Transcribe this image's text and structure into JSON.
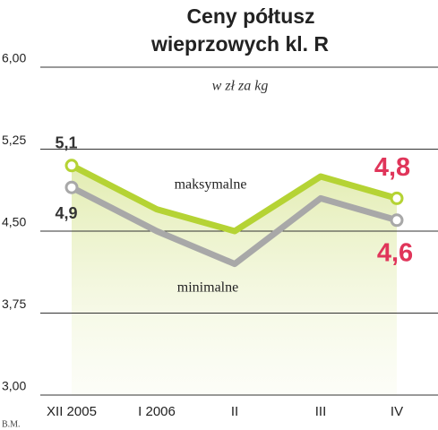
{
  "chart_data": {
    "type": "line",
    "title": "Ceny półtusz",
    "title_line2": "wieprzowych kl. R",
    "subtitle": "w zł za kg",
    "credit": "B.M.",
    "categories": [
      "XII 2005",
      "I 2006",
      "II",
      "III",
      "IV"
    ],
    "series": [
      {
        "name": "maksymalne",
        "color": "#b5d334",
        "values": [
          5.1,
          4.7,
          4.5,
          5.0,
          4.8
        ],
        "value_labels": [
          "5,1",
          null,
          null,
          null,
          "4,8"
        ]
      },
      {
        "name": "minimalne",
        "color": "#a8a8a8",
        "values": [
          4.9,
          4.5,
          4.2,
          4.8,
          4.6
        ],
        "value_labels": [
          "4,9",
          null,
          null,
          null,
          "4,6"
        ]
      }
    ],
    "ylim": [
      3,
      6
    ],
    "yticks": [
      {
        "value": 3,
        "label": "3,00"
      },
      {
        "value": 3.75,
        "label": "3,75"
      },
      {
        "value": 4.5,
        "label": "4,50"
      },
      {
        "value": 5.25,
        "label": "5,25"
      },
      {
        "value": 6,
        "label": "6,00"
      }
    ],
    "grid": true
  }
}
